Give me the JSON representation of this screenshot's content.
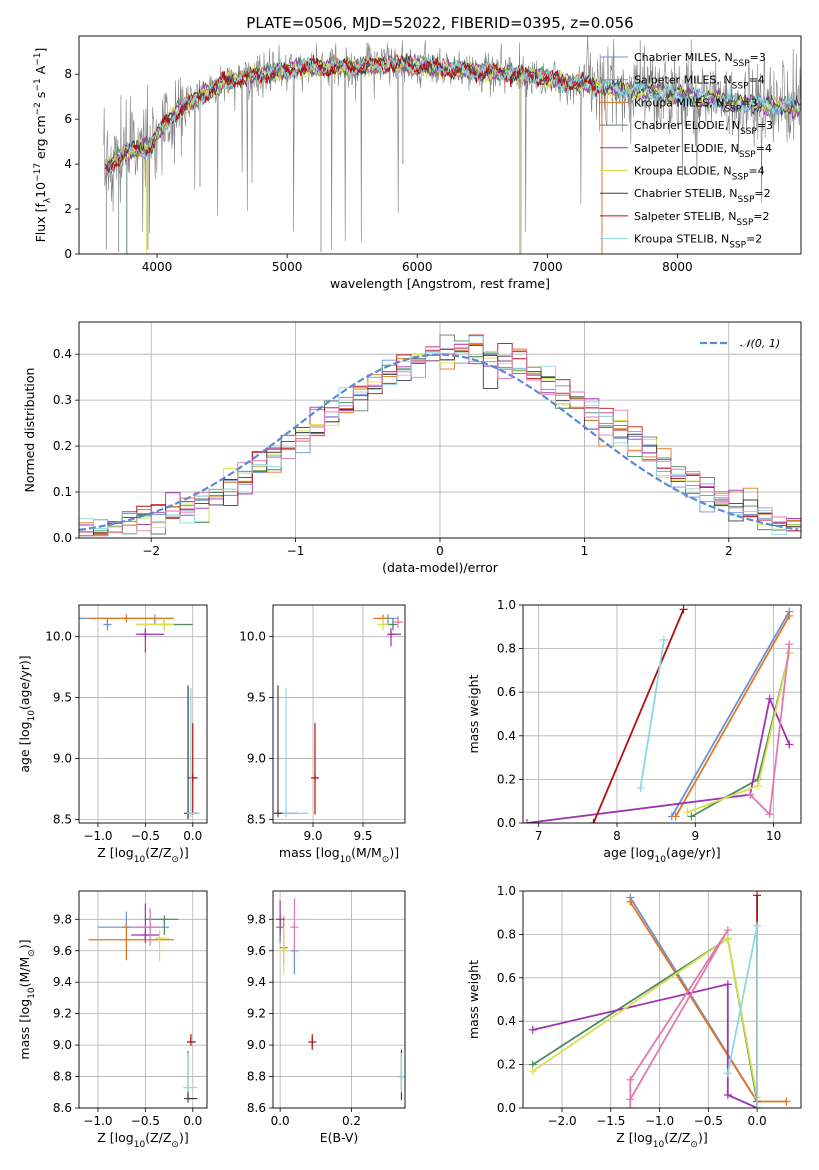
{
  "colors": {
    "c0": "#6f8fd8",
    "c1": "#e07820",
    "c2": "#4d8a60",
    "c3": "#9d35b0",
    "c4": "#d8e050",
    "c5": "#404040",
    "c6": "#b21010",
    "c7": "#8fd8e0",
    "pink": "#e07ab0",
    "norm": "#5b8bd6",
    "data": "#808080",
    "grid": "#b0b0b0"
  },
  "legend_entries": [
    {
      "text": "Chabrier MILES, N",
      "sub": "SSP",
      "after": "=3",
      "color": "c0"
    },
    {
      "text": "Salpeter MILES, N",
      "sub": "SSP",
      "after": "=4",
      "color": "c0"
    },
    {
      "text": "Kroupa MILES, N",
      "sub": "SSP",
      "after": "=3",
      "color": "c1"
    },
    {
      "text": "Chabrier ELODIE, N",
      "sub": "SSP",
      "after": "=3",
      "color": "c2"
    },
    {
      "text": "Salpeter ELODIE, N",
      "sub": "SSP",
      "after": "=4",
      "color": "c3"
    },
    {
      "text": "Kroupa ELODIE, N",
      "sub": "SSP",
      "after": "=4",
      "color": "c4"
    },
    {
      "text": "Chabrier STELIB, N",
      "sub": "SSP",
      "after": "=2",
      "color": "c5"
    },
    {
      "text": "Salpeter STELIB, N",
      "sub": "SSP",
      "after": "=2",
      "color": "c6"
    },
    {
      "text": "Kroupa STELIB, N",
      "sub": "SSP",
      "after": "=2",
      "color": "c7"
    }
  ],
  "chart_data": [
    {
      "id": "spectrum",
      "type": "line",
      "title": "PLATE=0506, MJD=52022, FIBERID=0395, z=0.056",
      "xlabel": "wavelength [Angstrom, rest frame]",
      "ylabel_main": "Flux [f",
      "ylabel_sub": "λ",
      "ylabel_rest": "10",
      "ylabel_sup": "−17",
      "ylabel_tail": " erg cm",
      "ylabel_sup2": "−2",
      "ylabel_tail2": " s",
      "ylabel_sup3": "−1",
      "ylabel_tail3": " A",
      "ylabel_sup4": "−1",
      "ylabel_end": "]",
      "xlim": [
        3400,
        8950
      ],
      "ylim": [
        0,
        9.7
      ],
      "xticks": [
        4000,
        5000,
        6000,
        7000,
        8000
      ],
      "yticks": [
        0,
        2,
        4,
        6,
        8
      ],
      "continuum_knots": [
        [
          3580,
          3.6
        ],
        [
          3700,
          4.3
        ],
        [
          3800,
          4.6
        ],
        [
          3950,
          4.8
        ],
        [
          4100,
          6.1
        ],
        [
          4300,
          6.9
        ],
        [
          4500,
          7.6
        ],
        [
          4700,
          7.9
        ],
        [
          5000,
          8.2
        ],
        [
          5200,
          8.3
        ],
        [
          5500,
          8.3
        ],
        [
          5800,
          8.5
        ],
        [
          6000,
          8.4
        ],
        [
          6300,
          8.2
        ],
        [
          6600,
          8.1
        ],
        [
          6900,
          7.9
        ],
        [
          7200,
          7.6
        ],
        [
          7500,
          7.4
        ],
        [
          7800,
          7.2
        ],
        [
          8100,
          7.0
        ],
        [
          8400,
          6.8
        ],
        [
          8700,
          6.6
        ],
        [
          8950,
          6.5
        ]
      ],
      "legend_position": "upper-right"
    },
    {
      "id": "residuals",
      "type": "histogram",
      "xlabel": "(data-model)/error",
      "ylabel": "Normed distribution",
      "xlim": [
        -2.5,
        2.5
      ],
      "ylim": [
        0,
        0.47
      ],
      "xticks": [
        -2,
        -1,
        0,
        1,
        2
      ],
      "yticks": [
        0,
        0.1,
        0.2,
        0.3,
        0.4
      ],
      "bins": 50,
      "reference": {
        "label": "𝒩(0, 1)",
        "mean": 0,
        "sigma": 1
      },
      "legend_position": "upper-right"
    },
    {
      "id": "age-vs-Z",
      "type": "errorbar",
      "xlabel": "Z [log",
      "xlabel_sub": "10",
      "xlabel_rest": "(Z/Z",
      "xlabel_sub2": "⊙",
      "xlabel_end": ")]",
      "ylabel": "age  [log",
      "ylabel_sub": "10",
      "ylabel_rest": "(age/yr)]",
      "xlim": [
        -1.2,
        0.15
      ],
      "ylim": [
        8.47,
        10.26
      ],
      "xticks": [
        -1.0,
        -0.5,
        0.0
      ],
      "yticks": [
        8.5,
        9.0,
        9.5,
        10.0
      ],
      "points": [
        {
          "x": -0.4,
          "y": 10.15,
          "xerr": [
            0.8,
            0.2
          ],
          "yerr": [
            0.05,
            0.0
          ],
          "color": "c0"
        },
        {
          "x": -0.7,
          "y": 10.15,
          "xerr": [
            0.4,
            0.5
          ],
          "yerr": [
            0.0,
            0.0
          ],
          "color": "c1"
        },
        {
          "x": -0.3,
          "y": 10.1,
          "xerr": [
            0.3,
            0.3
          ],
          "yerr": [
            0.0,
            0.05
          ],
          "color": "c2"
        },
        {
          "x": -0.5,
          "y": 10.02,
          "xerr": [
            0.1,
            0.2
          ],
          "yerr": [
            0.15,
            0.05
          ],
          "color": "c3"
        },
        {
          "x": -0.3,
          "y": 10.1,
          "xerr": [
            0.3,
            0.1
          ],
          "yerr": [
            0.05,
            0.05
          ],
          "color": "c4"
        },
        {
          "x": -0.05,
          "y": 8.55,
          "xerr": [
            0.0,
            0.1
          ],
          "yerr": [
            0.05,
            1.05
          ],
          "color": "c5"
        },
        {
          "x": 0.0,
          "y": 8.84,
          "xerr": [
            0.05,
            0.05
          ],
          "yerr": [
            0.3,
            0.45
          ],
          "color": "c6"
        },
        {
          "x": -0.02,
          "y": 8.55,
          "xerr": [
            0.03,
            0.1
          ],
          "yerr": [
            0.0,
            1.03
          ],
          "color": "c7"
        },
        {
          "x": -0.9,
          "y": 10.1,
          "xerr": [
            0.0,
            0.0
          ],
          "yerr": [
            0.05,
            0.05
          ],
          "color": "c0"
        }
      ]
    },
    {
      "id": "age-vs-mass",
      "type": "errorbar",
      "xlabel": "mass [log",
      "xlabel_sub": "10",
      "xlabel_rest": "(M/M",
      "xlabel_sub2": "⊙",
      "xlabel_end": ")]",
      "xlim": [
        8.6,
        9.92
      ],
      "ylim": [
        8.47,
        10.26
      ],
      "xticks": [
        9.0,
        9.5
      ],
      "yticks": [
        8.5,
        9.0,
        9.5,
        10.0
      ],
      "points": [
        {
          "x": 9.75,
          "y": 10.15,
          "xerr": [
            0.05,
            0.1
          ],
          "yerr": [
            0.05,
            0.0
          ],
          "color": "c0"
        },
        {
          "x": 9.7,
          "y": 10.15,
          "xerr": [
            0.1,
            0.05
          ],
          "yerr": [
            0.0,
            0.0
          ],
          "color": "c1"
        },
        {
          "x": 9.8,
          "y": 10.1,
          "xerr": [
            0.1,
            0.0
          ],
          "yerr": [
            0.05,
            0.05
          ],
          "color": "c2"
        },
        {
          "x": 9.78,
          "y": 10.02,
          "xerr": [
            0.02,
            0.1
          ],
          "yerr": [
            0.1,
            0.05
          ],
          "color": "c3"
        },
        {
          "x": 9.7,
          "y": 10.1,
          "xerr": [
            0.05,
            0.05
          ],
          "yerr": [
            0.05,
            0.05
          ],
          "color": "c4"
        },
        {
          "x": 8.65,
          "y": 8.55,
          "xerr": [
            0.0,
            0.2
          ],
          "yerr": [
            0.0,
            1.05
          ],
          "color": "c5"
        },
        {
          "x": 9.02,
          "y": 8.84,
          "xerr": [
            0.02,
            0.02
          ],
          "yerr": [
            0.3,
            0.45
          ],
          "color": "c6"
        },
        {
          "x": 8.73,
          "y": 8.55,
          "xerr": [
            0.0,
            0.22
          ],
          "yerr": [
            0.0,
            1.03
          ],
          "color": "c7"
        },
        {
          "x": 9.85,
          "y": 10.12,
          "xerr": [
            0.05,
            0.05
          ],
          "yerr": [
            0.05,
            0.05
          ],
          "color": "pink"
        }
      ]
    },
    {
      "id": "weight-vs-age",
      "type": "line",
      "xlabel": "age  [log",
      "xlabel_sub": "10",
      "xlabel_rest": "(age/yr)]",
      "ylabel": "mass weight",
      "xlim": [
        6.8,
        10.35
      ],
      "ylim": [
        0,
        1.0
      ],
      "xticks": [
        7,
        8,
        9,
        10
      ],
      "yticks": [
        0.0,
        0.2,
        0.4,
        0.6,
        0.8,
        1.0
      ],
      "series": [
        {
          "color": "c0",
          "x": [
            8.7,
            10.2
          ],
          "y": [
            0.03,
            0.97
          ]
        },
        {
          "color": "c1",
          "x": [
            8.75,
            10.2
          ],
          "y": [
            0.03,
            0.95
          ]
        },
        {
          "color": "c2",
          "x": [
            8.95,
            9.8,
            10.2
          ],
          "y": [
            0.03,
            0.2,
            0.78
          ]
        },
        {
          "color": "c3",
          "x": [
            6.85,
            9.7,
            9.95,
            10.2
          ],
          "y": [
            0.0,
            0.13,
            0.57,
            0.36
          ]
        },
        {
          "color": "c4",
          "x": [
            8.9,
            9.8,
            10.2
          ],
          "y": [
            0.05,
            0.17,
            0.78
          ]
        },
        {
          "color": "c6",
          "x": [
            7.7,
            8.85
          ],
          "y": [
            0.0,
            0.98
          ]
        },
        {
          "color": "c7",
          "x": [
            8.3,
            8.6
          ],
          "y": [
            0.16,
            0.84
          ]
        },
        {
          "color": "pink",
          "x": [
            9.7,
            9.95,
            10.2
          ],
          "y": [
            0.13,
            0.04,
            0.82
          ]
        }
      ]
    },
    {
      "id": "mass-vs-Z",
      "type": "errorbar",
      "xlabel": "Z [log",
      "xlabel_sub": "10",
      "xlabel_rest": "(Z/Z",
      "xlabel_sub2": "⊙",
      "xlabel_end": ")]",
      "ylabel": "mass [log",
      "ylabel_sub": "10",
      "ylabel_rest": "(M/M",
      "ylabel_sub2": "⊙",
      "ylabel_end": ")]",
      "xlim": [
        -1.2,
        0.15
      ],
      "ylim": [
        8.6,
        9.98
      ],
      "xticks": [
        -1.0,
        -0.5,
        0.0
      ],
      "yticks": [
        8.6,
        8.8,
        9.0,
        9.2,
        9.4,
        9.6,
        9.8
      ],
      "points": [
        {
          "x": -0.7,
          "y": 9.75,
          "xerr": [
            0.3,
            0.45
          ],
          "yerr": [
            0.2,
            0.1
          ],
          "color": "c0"
        },
        {
          "x": -0.7,
          "y": 9.67,
          "xerr": [
            0.4,
            0.5
          ],
          "yerr": [
            0.13,
            0.1
          ],
          "color": "c1"
        },
        {
          "x": -0.3,
          "y": 9.8,
          "xerr": [
            0.2,
            0.15
          ],
          "yerr": [
            0.1,
            0.0
          ],
          "color": "c2"
        },
        {
          "x": -0.5,
          "y": 9.7,
          "xerr": [
            0.15,
            0.15
          ],
          "yerr": [
            0.05,
            0.2
          ],
          "color": "c3"
        },
        {
          "x": -0.35,
          "y": 9.68,
          "xerr": [
            0.05,
            0.1
          ],
          "yerr": [
            0.15,
            0.05
          ],
          "color": "c4"
        },
        {
          "x": -0.05,
          "y": 8.66,
          "xerr": [
            0.0,
            0.1
          ],
          "yerr": [
            0.0,
            0.3
          ],
          "color": "c5"
        },
        {
          "x": -0.02,
          "y": 9.02,
          "xerr": [
            0.03,
            0.05
          ],
          "yerr": [
            0.0,
            0.05
          ],
          "color": "c6"
        },
        {
          "x": -0.05,
          "y": 8.73,
          "xerr": [
            0.05,
            0.1
          ],
          "yerr": [
            0.0,
            0.22
          ],
          "color": "c7"
        },
        {
          "x": -0.45,
          "y": 9.75,
          "xerr": [
            0.2,
            0.1
          ],
          "yerr": [
            0.12,
            0.12
          ],
          "color": "pink"
        }
      ]
    },
    {
      "id": "mass-vs-EBV",
      "type": "errorbar",
      "xlabel": "E(B-V)",
      "xlim": [
        -0.02,
        0.35
      ],
      "ylim": [
        8.6,
        9.98
      ],
      "xticks": [
        0.0,
        0.2
      ],
      "yticks": [
        8.6,
        8.8,
        9.0,
        9.2,
        9.4,
        9.6,
        9.8
      ],
      "points": [
        {
          "x": 0.04,
          "y": 9.6,
          "xerr": [
            0.0,
            0.0
          ],
          "yerr": [
            0.15,
            0.05
          ],
          "color": "c0"
        },
        {
          "x": 0.01,
          "y": 9.62,
          "xerr": [
            0.0,
            0.0
          ],
          "yerr": [
            0.1,
            0.2
          ],
          "color": "c1"
        },
        {
          "x": 0.0,
          "y": 9.75,
          "xerr": [
            0.0,
            0.0
          ],
          "yerr": [
            0.1,
            0.05
          ],
          "color": "c2"
        },
        {
          "x": 0.0,
          "y": 9.8,
          "xerr": [
            0.0,
            0.0
          ],
          "yerr": [
            0.1,
            0.12
          ],
          "color": "c3"
        },
        {
          "x": 0.01,
          "y": 9.6,
          "xerr": [
            0.0,
            0.0
          ],
          "yerr": [
            0.15,
            0.15
          ],
          "color": "c4"
        },
        {
          "x": 0.34,
          "y": 8.8,
          "xerr": [
            0.0,
            0.0
          ],
          "yerr": [
            0.15,
            0.17
          ],
          "color": "c5"
        },
        {
          "x": 0.09,
          "y": 9.02,
          "xerr": [
            0.0,
            0.0
          ],
          "yerr": [
            0.05,
            0.05
          ],
          "color": "c6"
        },
        {
          "x": 0.34,
          "y": 8.8,
          "xerr": [
            0.0,
            0.0
          ],
          "yerr": [
            0.1,
            0.15
          ],
          "color": "c7"
        },
        {
          "x": 0.04,
          "y": 9.75,
          "xerr": [
            0.0,
            0.0
          ],
          "yerr": [
            0.15,
            0.18
          ],
          "color": "pink"
        }
      ]
    },
    {
      "id": "weight-vs-Z",
      "type": "line",
      "xlabel": "Z [log",
      "xlabel_sub": "10",
      "xlabel_rest": "(Z/Z",
      "xlabel_sub2": "⊙",
      "xlabel_end": ")]",
      "ylabel": "mass weight",
      "xlim": [
        -2.4,
        0.45
      ],
      "ylim": [
        0,
        1.0
      ],
      "xticks": [
        -2.0,
        -1.5,
        -1.0,
        -0.5,
        0.0
      ],
      "yticks": [
        0.0,
        0.2,
        0.4,
        0.6,
        0.8,
        1.0
      ],
      "series": [
        {
          "color": "c0",
          "x": [
            -1.3,
            0.0
          ],
          "y": [
            0.97,
            0.03
          ]
        },
        {
          "color": "c1",
          "x": [
            -1.3,
            0.0,
            0.3
          ],
          "y": [
            0.95,
            0.03,
            0.03
          ]
        },
        {
          "color": "c2",
          "x": [
            -2.3,
            -0.3,
            0.0
          ],
          "y": [
            0.2,
            0.78,
            0.03
          ]
        },
        {
          "color": "c3",
          "x": [
            -2.3,
            -0.3,
            -0.3,
            0.0
          ],
          "y": [
            0.36,
            0.57,
            0.06,
            0.0
          ]
        },
        {
          "color": "c4",
          "x": [
            -2.3,
            -0.3,
            0.0
          ],
          "y": [
            0.17,
            0.78,
            0.05
          ]
        },
        {
          "color": "c6",
          "x": [
            0.0,
            0.0
          ],
          "y": [
            0.0,
            0.98
          ]
        },
        {
          "color": "c7",
          "x": [
            -0.3,
            0.0,
            0.0
          ],
          "y": [
            0.16,
            0.84,
            0.0
          ]
        },
        {
          "color": "pink",
          "x": [
            -1.3,
            -0.3,
            -1.3,
            -1.3
          ],
          "y": [
            0.04,
            0.82,
            0.13,
            0.0
          ]
        }
      ]
    }
  ]
}
